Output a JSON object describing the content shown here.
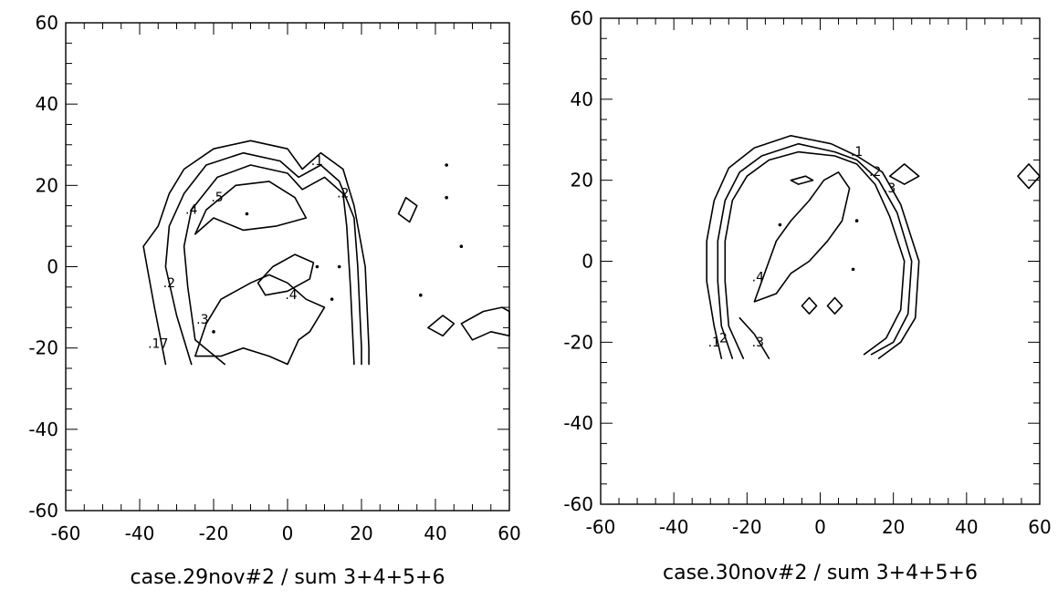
{
  "chart_data": [
    {
      "type": "contour",
      "caption": "case.29nov#2 / sum 3+4+5+6",
      "xlim": [
        -60,
        60
      ],
      "ylim": [
        -60,
        60
      ],
      "x_ticks": [
        "-60",
        "-40",
        "-20",
        "0",
        "20",
        "40",
        "60"
      ],
      "y_ticks": [
        "-60",
        "-40",
        "-20",
        "0",
        "20",
        "40",
        "60"
      ],
      "grid": false,
      "contour_levels": [
        ".1",
        ".2",
        ".3",
        ".4",
        ".5"
      ],
      "contours": [
        {
          "level": ".1",
          "points": [
            [
              -33,
              -24
            ],
            [
              -36,
              -10
            ],
            [
              -38,
              0
            ],
            [
              -39,
              5
            ],
            [
              -35,
              10
            ],
            [
              -32,
              18
            ],
            [
              -28,
              24
            ],
            [
              -20,
              29
            ],
            [
              -10,
              31
            ],
            [
              0,
              29
            ],
            [
              4,
              24
            ],
            [
              9,
              28
            ],
            [
              15,
              24
            ],
            [
              18,
              15
            ],
            [
              21,
              0
            ],
            [
              22,
              -20
            ],
            [
              22,
              -24
            ]
          ]
        },
        {
          "level": ".2",
          "points": [
            [
              -26,
              -24
            ],
            [
              -30,
              -12
            ],
            [
              -33,
              0
            ],
            [
              -32,
              10
            ],
            [
              -28,
              18
            ],
            [
              -22,
              25
            ],
            [
              -12,
              28
            ],
            [
              -2,
              26
            ],
            [
              3,
              22
            ],
            [
              9,
              25
            ],
            [
              14,
              21
            ],
            [
              18,
              12
            ],
            [
              19,
              0
            ],
            [
              20,
              -20
            ],
            [
              20,
              -24
            ]
          ]
        },
        {
          "level": ".3",
          "points": [
            [
              -17,
              -24
            ],
            [
              -25,
              -18
            ],
            [
              -27,
              -5
            ],
            [
              -28,
              5
            ],
            [
              -26,
              14
            ],
            [
              -19,
              22
            ],
            [
              -10,
              25
            ],
            [
              0,
              23
            ],
            [
              4,
              19
            ],
            [
              10,
              22
            ],
            [
              15,
              18
            ],
            [
              16,
              10
            ],
            [
              17,
              -5
            ],
            [
              18,
              -24
            ]
          ]
        },
        {
          "level": ".4",
          "points": [
            [
              -25,
              8
            ],
            [
              -22,
              14
            ],
            [
              -14,
              20
            ],
            [
              -5,
              21
            ],
            [
              2,
              17
            ],
            [
              5,
              12
            ],
            [
              -3,
              10
            ],
            [
              -12,
              9
            ],
            [
              -20,
              12
            ],
            [
              -25,
              8
            ]
          ]
        },
        {
          "level": ".4",
          "points": [
            [
              -25,
              -22
            ],
            [
              -22,
              -14
            ],
            [
              -18,
              -8
            ],
            [
              -10,
              -4
            ],
            [
              -5,
              -2
            ],
            [
              0,
              -4
            ],
            [
              5,
              -8
            ],
            [
              10,
              -10
            ],
            [
              6,
              -16
            ],
            [
              3,
              -18
            ],
            [
              0,
              -24
            ],
            [
              -5,
              -22
            ],
            [
              -12,
              -20
            ],
            [
              -18,
              -22
            ],
            [
              -25,
              -22
            ]
          ]
        },
        {
          "level": ".5",
          "points": [
            [
              -8,
              -4
            ],
            [
              -4,
              0
            ],
            [
              2,
              3
            ],
            [
              7,
              1
            ],
            [
              6,
              -3
            ],
            [
              0,
              -6
            ],
            [
              -6,
              -7
            ],
            [
              -8,
              -4
            ]
          ]
        },
        {
          "level": ".1",
          "points": [
            [
              38,
              -15
            ],
            [
              42,
              -17
            ],
            [
              45,
              -14
            ],
            [
              42,
              -12
            ],
            [
              38,
              -15
            ]
          ]
        },
        {
          "level": ".1",
          "points": [
            [
              30,
              13
            ],
            [
              33,
              11
            ],
            [
              35,
              15
            ],
            [
              32,
              17
            ],
            [
              30,
              13
            ]
          ]
        },
        {
          "level": ".1",
          "points": [
            [
              47,
              -14
            ],
            [
              53,
              -11
            ],
            [
              58,
              -10
            ],
            [
              60,
              -11
            ],
            [
              60,
              -17
            ],
            [
              55,
              -16
            ],
            [
              50,
              -18
            ],
            [
              47,
              -14
            ]
          ]
        }
      ],
      "contour_labels": [
        {
          "text": ".1",
          "x": 8,
          "y": 25
        },
        {
          "text": ".2",
          "x": 15,
          "y": 17
        },
        {
          "text": ".5",
          "x": -19,
          "y": 16
        },
        {
          "text": ".4",
          "x": -26,
          "y": 13
        },
        {
          "text": ".2",
          "x": -32,
          "y": -5
        },
        {
          "text": ".3",
          "x": -23,
          "y": -14
        },
        {
          "text": ".4",
          "x": 1,
          "y": -8
        },
        {
          "text": ".17",
          "x": -35,
          "y": -20
        }
      ]
    },
    {
      "type": "contour",
      "caption": "case.30nov#2 / sum 3+4+5+6",
      "xlim": [
        -60,
        60
      ],
      "ylim": [
        -60,
        60
      ],
      "x_ticks": [
        "-60",
        "-40",
        "-20",
        "0",
        "20",
        "40",
        "60"
      ],
      "y_ticks": [
        "-60",
        "-40",
        "-20",
        "0",
        "20",
        "40",
        "60"
      ],
      "grid": false,
      "contour_levels": [
        ".1",
        ".2",
        ".3",
        ".4"
      ],
      "contours": [
        {
          "level": ".1",
          "points": [
            [
              -27,
              -24
            ],
            [
              -29,
              -16
            ],
            [
              -31,
              -5
            ],
            [
              -31,
              5
            ],
            [
              -29,
              15
            ],
            [
              -25,
              23
            ],
            [
              -18,
              28
            ],
            [
              -8,
              31
            ],
            [
              3,
              29
            ],
            [
              10,
              26
            ],
            [
              17,
              22
            ],
            [
              22,
              14
            ],
            [
              27,
              0
            ],
            [
              26,
              -14
            ],
            [
              22,
              -20
            ],
            [
              16,
              -24
            ]
          ]
        },
        {
          "level": ".2",
          "points": [
            [
              -24,
              -24
            ],
            [
              -27,
              -16
            ],
            [
              -28,
              -5
            ],
            [
              -28,
              5
            ],
            [
              -26,
              15
            ],
            [
              -22,
              22
            ],
            [
              -16,
              26
            ],
            [
              -6,
              29
            ],
            [
              4,
              27
            ],
            [
              10,
              25
            ],
            [
              16,
              20
            ],
            [
              21,
              12
            ],
            [
              25,
              0
            ],
            [
              24,
              -13
            ],
            [
              20,
              -20
            ],
            [
              14,
              -23
            ]
          ]
        },
        {
          "level": ".3",
          "points": [
            [
              -21,
              -24
            ],
            [
              -25,
              -16
            ],
            [
              -26,
              -5
            ],
            [
              -26,
              5
            ],
            [
              -24,
              15
            ],
            [
              -20,
              21
            ],
            [
              -14,
              25
            ],
            [
              -6,
              27
            ],
            [
              4,
              26
            ],
            [
              10,
              24
            ],
            [
              15,
              19
            ],
            [
              19,
              11
            ],
            [
              23,
              0
            ],
            [
              22,
              -12
            ],
            [
              18,
              -19
            ],
            [
              12,
              -23
            ]
          ]
        },
        {
          "level": ".4",
          "points": [
            [
              -18,
              -10
            ],
            [
              -16,
              -5
            ],
            [
              -14,
              0
            ],
            [
              -12,
              5
            ],
            [
              -8,
              10
            ],
            [
              -3,
              15
            ],
            [
              1,
              20
            ],
            [
              5,
              22
            ],
            [
              8,
              18
            ],
            [
              6,
              10
            ],
            [
              2,
              5
            ],
            [
              -3,
              0
            ],
            [
              -8,
              -3
            ],
            [
              -12,
              -8
            ],
            [
              -15,
              -9
            ],
            [
              -18,
              -10
            ]
          ]
        },
        {
          "level": ".3",
          "points": [
            [
              -14,
              -24
            ],
            [
              -18,
              -18
            ],
            [
              -22,
              -14
            ]
          ]
        },
        {
          "level": ".1",
          "points": [
            [
              19,
              21
            ],
            [
              23,
              19
            ],
            [
              27,
              21
            ],
            [
              23,
              24
            ],
            [
              19,
              21
            ]
          ]
        },
        {
          "level": ".1",
          "points": [
            [
              54,
              21
            ],
            [
              57,
              18
            ],
            [
              60,
              21
            ],
            [
              57,
              24
            ],
            [
              54,
              21
            ]
          ]
        },
        {
          "level": ".1",
          "points": [
            [
              -5,
              -11
            ],
            [
              -3,
              -13
            ],
            [
              -1,
              -11
            ],
            [
              -3,
              -9
            ],
            [
              -5,
              -11
            ]
          ]
        },
        {
          "level": ".1",
          "points": [
            [
              2,
              -11
            ],
            [
              4,
              -13
            ],
            [
              6,
              -11
            ],
            [
              4,
              -9
            ],
            [
              2,
              -11
            ]
          ]
        },
        {
          "level": ".1",
          "points": [
            [
              -8,
              20
            ],
            [
              -4,
              21
            ],
            [
              -2,
              20
            ],
            [
              -6,
              19
            ],
            [
              -8,
              20
            ]
          ]
        }
      ],
      "contour_labels": [
        {
          "text": ".1",
          "x": 10,
          "y": 26
        },
        {
          "text": ".2",
          "x": 15,
          "y": 21
        },
        {
          "text": ".3",
          "x": 19,
          "y": 17
        },
        {
          "text": ".4",
          "x": -17,
          "y": -5
        },
        {
          "text": ".2",
          "x": -27,
          "y": -20
        },
        {
          "text": ".1",
          "x": -29,
          "y": -21
        },
        {
          "text": ".3",
          "x": -17,
          "y": -21
        }
      ]
    }
  ]
}
